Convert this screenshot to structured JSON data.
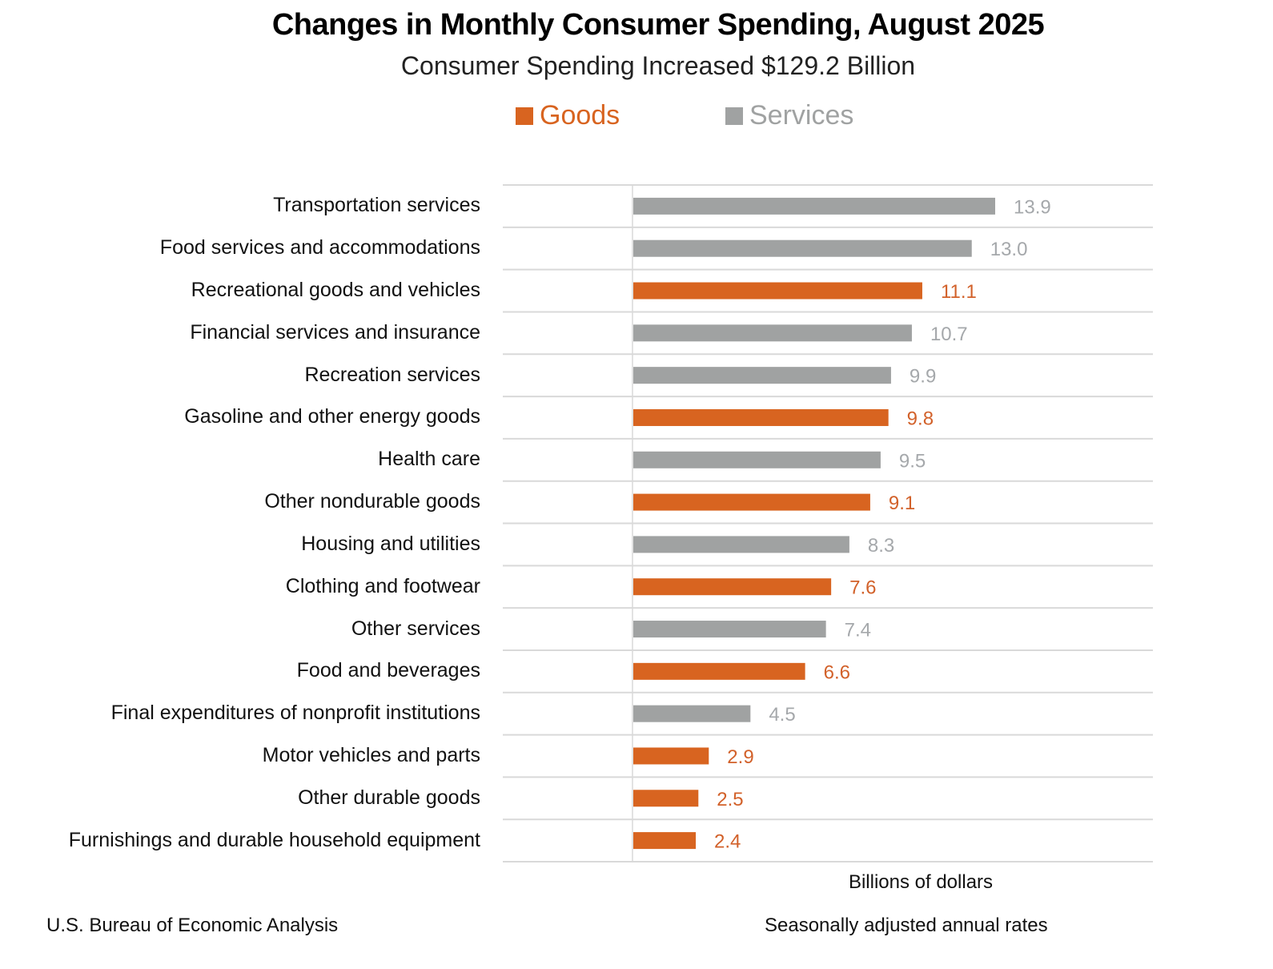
{
  "chart_data": {
    "type": "bar",
    "orientation": "horizontal",
    "title": "Changes in Monthly Consumer Spending, August 2025",
    "subtitle": "Consumer Spending Increased $129.2 Billion",
    "xlabel": "Billions of dollars",
    "ylabel": "",
    "xlim": [
      -5,
      20
    ],
    "grid": true,
    "legend_position": "top-center",
    "legend": [
      {
        "name": "Goods",
        "color": "#d86420",
        "text_color": "#d86420"
      },
      {
        "name": "Services",
        "color": "#a0a2a2",
        "text_color": "#a0a2a2"
      }
    ],
    "categories": [
      "Transportation services",
      "Food services and accommodations",
      "Recreational goods and vehicles",
      "Financial services and insurance",
      "Recreation services",
      "Gasoline and other energy goods",
      "Health care",
      "Other nondurable goods",
      "Housing and utilities",
      "Clothing and footwear",
      "Other services",
      "Food and beverages",
      "Final expenditures of nonprofit institutions",
      "Motor vehicles and parts",
      "Other durable goods",
      "Furnishings and durable household equipment"
    ],
    "values": [
      13.9,
      13.0,
      11.1,
      10.7,
      9.9,
      9.8,
      9.5,
      9.1,
      8.3,
      7.6,
      7.4,
      6.6,
      4.5,
      2.9,
      2.5,
      2.4
    ],
    "value_labels": [
      "13.9",
      "13.0",
      "11.1",
      "10.7",
      "9.9",
      "9.8",
      "9.5",
      "9.1",
      "8.3",
      "7.6",
      "7.4",
      "6.6",
      "4.5",
      "2.9",
      "2.5",
      "2.4"
    ],
    "series_membership": [
      "Services",
      "Services",
      "Goods",
      "Services",
      "Services",
      "Goods",
      "Services",
      "Goods",
      "Services",
      "Goods",
      "Services",
      "Goods",
      "Services",
      "Goods",
      "Goods",
      "Goods"
    ]
  },
  "footer": {
    "source": "U.S. Bureau of Economic Analysis",
    "note": "Seasonally adjusted annual rates"
  },
  "colors": {
    "goods": "#d86420",
    "services": "#a0a2a2",
    "goods_label": "#d2612a",
    "services_label": "#a5a8ab",
    "gridline": "#d9d9d9"
  }
}
